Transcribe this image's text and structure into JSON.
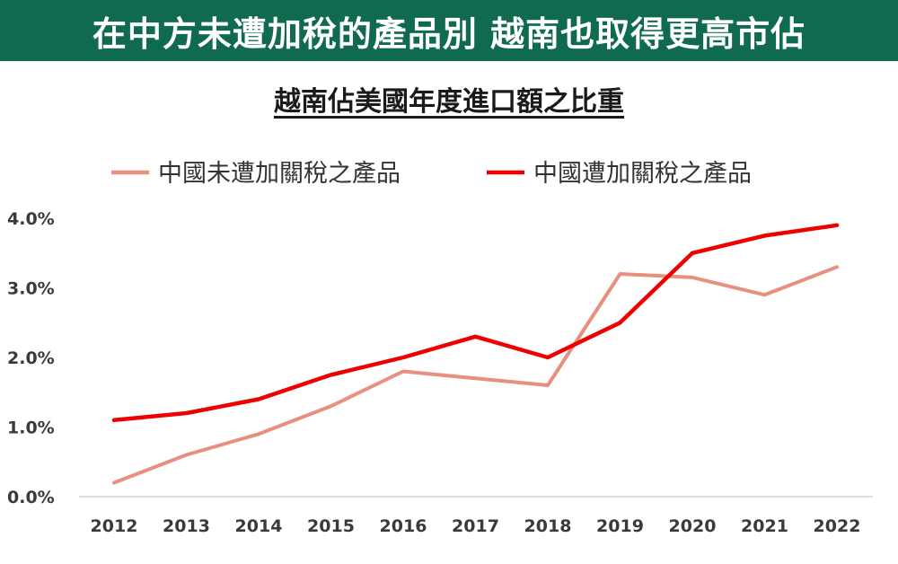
{
  "header": {
    "title": "在中方未遭加稅的產品別 越南也取得更高市佔"
  },
  "chart_data": {
    "type": "line",
    "title": "越南佔美國年度進口額之比重",
    "xlabel": "",
    "ylabel": "",
    "x": [
      "2012",
      "2013",
      "2014",
      "2015",
      "2016",
      "2017",
      "2018",
      "2019",
      "2020",
      "2021",
      "2022"
    ],
    "ylim": [
      0,
      4.0
    ],
    "yticks": [
      "0.0%",
      "1.0%",
      "2.0%",
      "3.0%",
      "4.0%"
    ],
    "grid": false,
    "legend_position": "top",
    "series": [
      {
        "name": "中國未遭加關稅之產品",
        "color": "#e8907f",
        "values": [
          0.2,
          0.6,
          0.9,
          1.3,
          1.8,
          1.7,
          1.6,
          3.2,
          3.15,
          2.9,
          3.3
        ]
      },
      {
        "name": "中國遭加關稅之產品",
        "color": "#ee0000",
        "values": [
          1.1,
          1.2,
          1.4,
          1.75,
          2.0,
          2.3,
          2.0,
          2.5,
          3.5,
          3.75,
          3.9
        ]
      }
    ]
  }
}
